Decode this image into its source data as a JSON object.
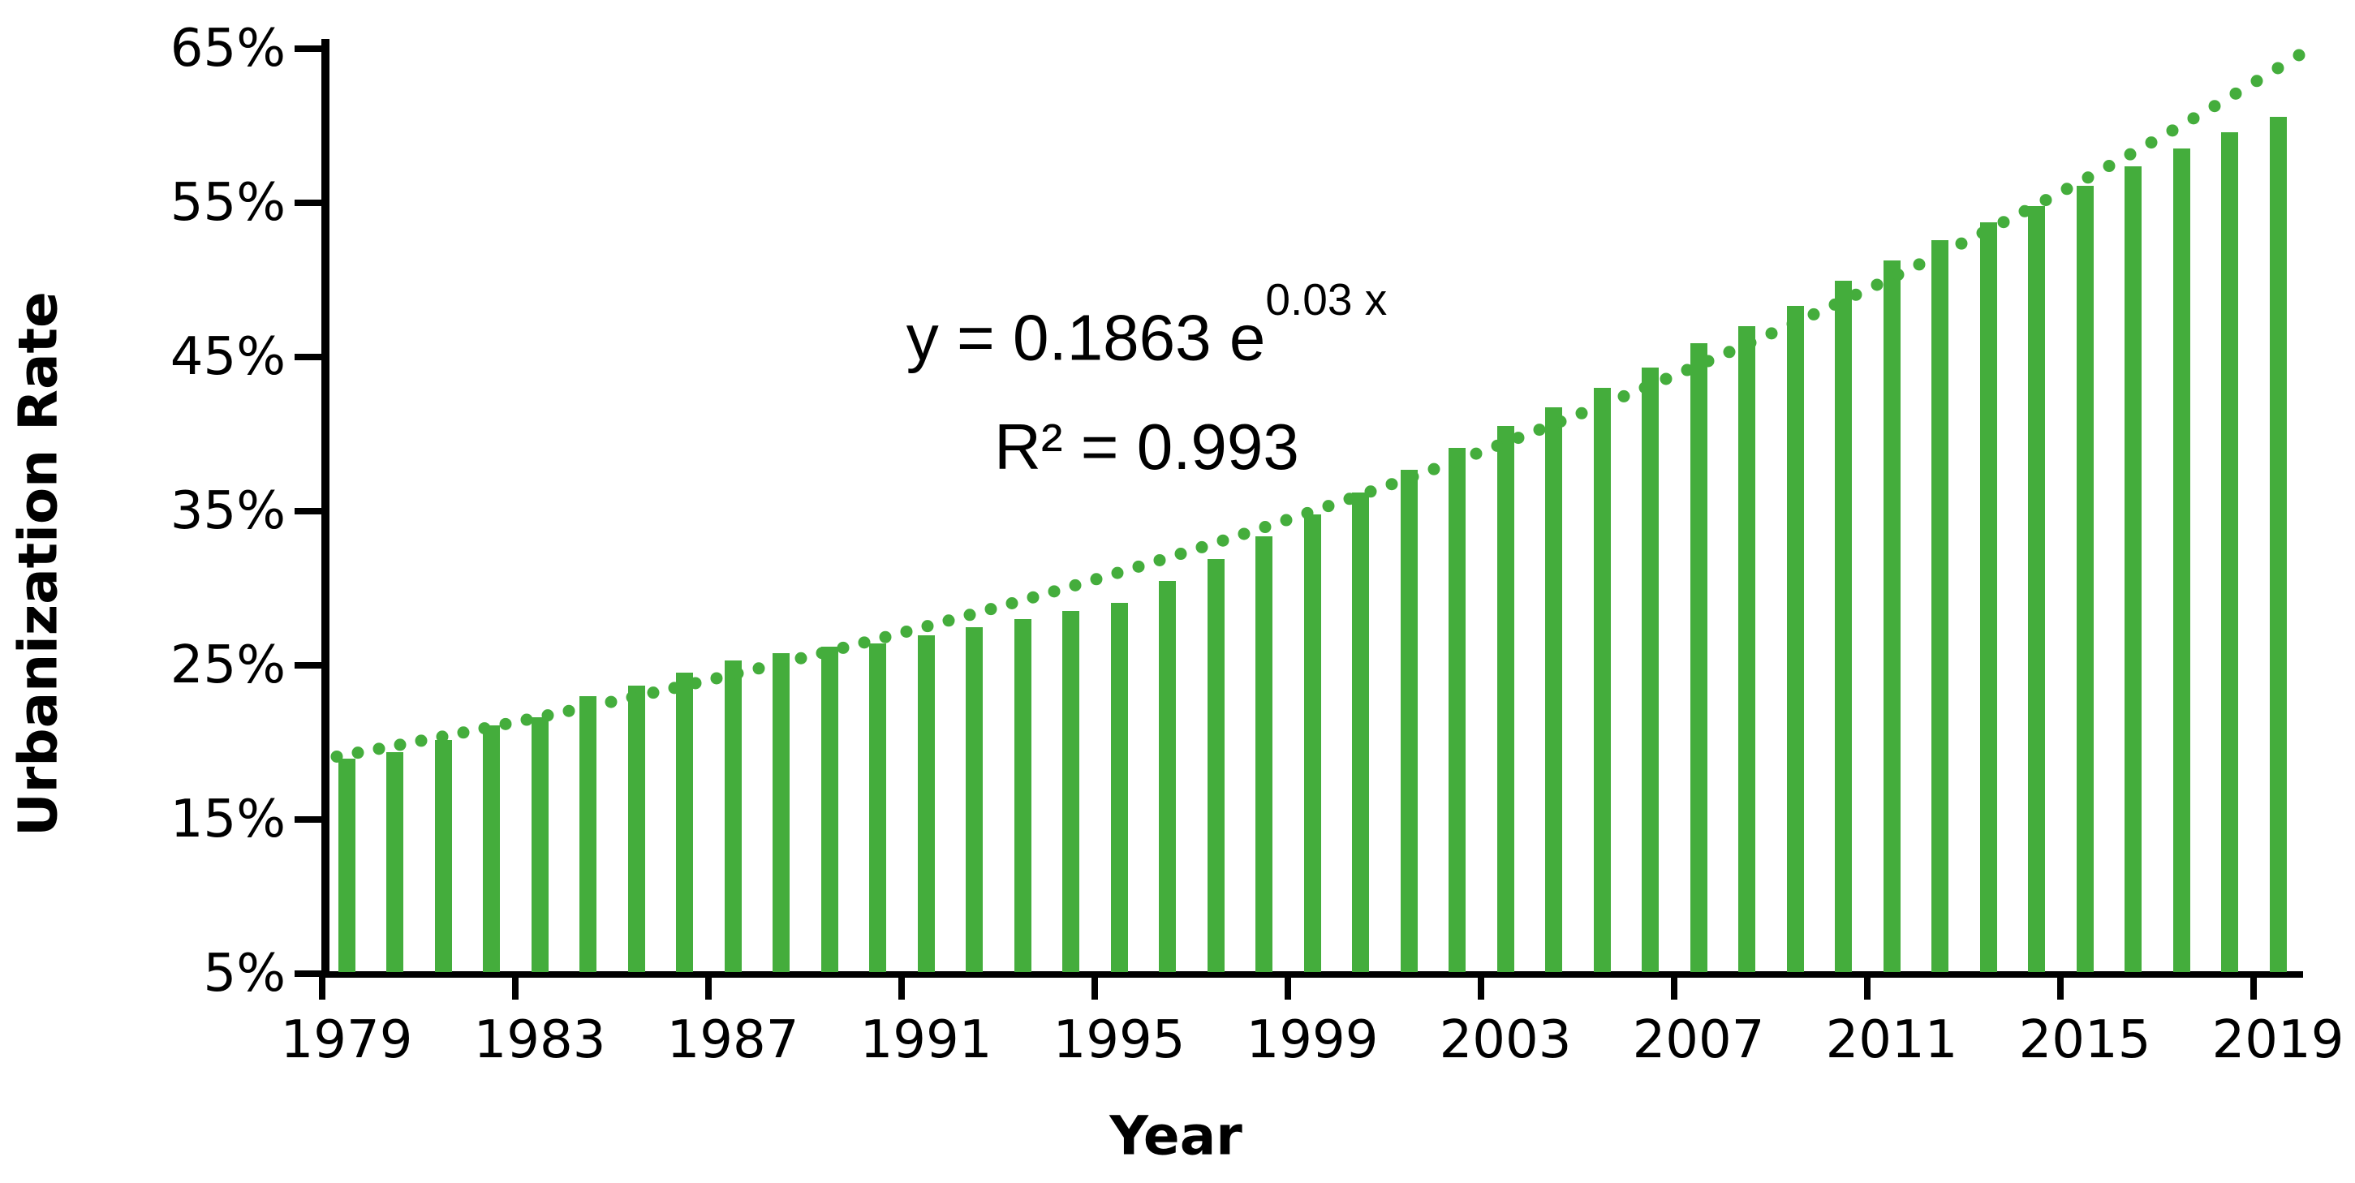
{
  "chart_data": {
    "type": "bar",
    "title": "",
    "xlabel": "Year",
    "ylabel": "Urbanization Rate",
    "categories": [
      1979,
      1980,
      1981,
      1982,
      1983,
      1984,
      1985,
      1986,
      1987,
      1988,
      1989,
      1990,
      1991,
      1992,
      1993,
      1994,
      1995,
      1996,
      1997,
      1998,
      1999,
      2000,
      2001,
      2002,
      2003,
      2004,
      2005,
      2006,
      2007,
      2008,
      2009,
      2010,
      2011,
      2012,
      2013,
      2014,
      2015,
      2016,
      2017,
      2018,
      2019
    ],
    "values": [
      18.96,
      19.39,
      20.16,
      21.13,
      21.62,
      23.01,
      23.71,
      24.52,
      25.32,
      25.81,
      26.21,
      26.41,
      26.94,
      27.46,
      27.99,
      28.51,
      29.04,
      30.48,
      31.91,
      33.35,
      34.78,
      36.22,
      37.66,
      39.09,
      40.53,
      41.76,
      42.99,
      44.34,
      45.89,
      46.99,
      48.34,
      49.95,
      51.27,
      52.57,
      53.73,
      54.77,
      56.1,
      57.35,
      58.52,
      59.58,
      60.6
    ],
    "value_unit": "%",
    "ylim": [
      5,
      65
    ],
    "ytick_labels": [
      "65%",
      "55%",
      "45%",
      "35%",
      "25%",
      "15%",
      "5%"
    ],
    "ytick_values": [
      65,
      55,
      45,
      35,
      25,
      15,
      5
    ],
    "xtick_labels": [
      "1979",
      "1983",
      "1987",
      "1991",
      "1995",
      "1999",
      "2003",
      "2007",
      "2011",
      "2015",
      "2019"
    ],
    "grid": false,
    "legend": "none",
    "bar_color": "#44ad3c",
    "trendline": {
      "type": "exponential",
      "equation": "y = 0.1863 e^(0.03 x)",
      "equation_base": "y = 0.1863 e",
      "equation_exponent": "0.03 x",
      "r_squared_label": "R² = 0.993",
      "a": 0.1863,
      "b": 0.03,
      "x_origin_year": 1978,
      "style": "dotted",
      "color": "#44ad3c"
    }
  }
}
